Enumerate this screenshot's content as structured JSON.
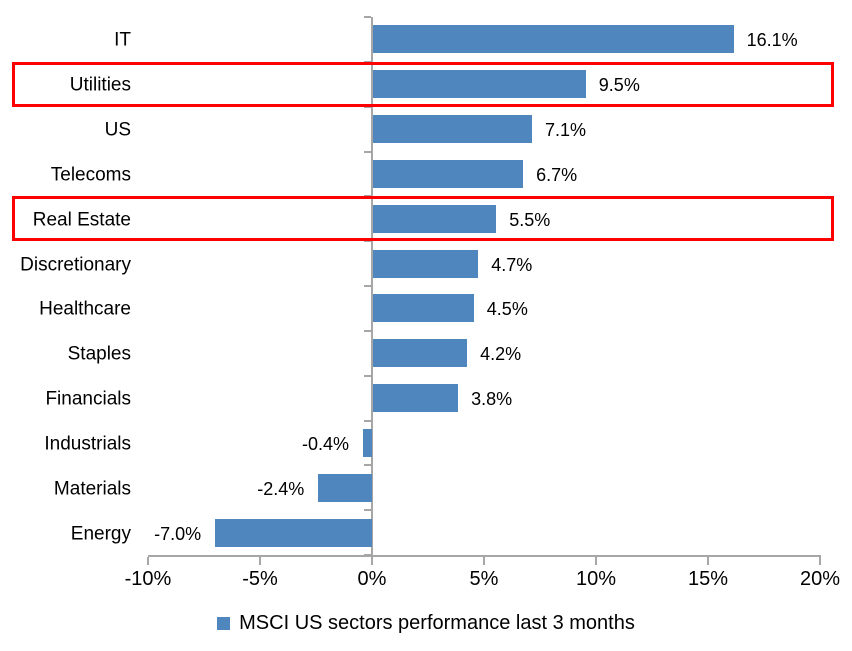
{
  "chart_data": {
    "type": "bar",
    "orientation": "horizontal",
    "categories": [
      "IT",
      "Utilities",
      "US",
      "Telecoms",
      "Real Estate",
      "Discretionary",
      "Healthcare",
      "Staples",
      "Financials",
      "Industrials",
      "Materials",
      "Energy"
    ],
    "values": [
      16.1,
      9.5,
      7.1,
      6.7,
      5.5,
      4.7,
      4.5,
      4.2,
      3.8,
      -0.4,
      -2.4,
      -7.0
    ],
    "data_labels": [
      "16.1%",
      "9.5%",
      "7.1%",
      "6.7%",
      "5.5%",
      "4.7%",
      "4.5%",
      "4.2%",
      "3.8%",
      "-0.4%",
      "-2.4%",
      "-7.0%"
    ],
    "x_tick_values": [
      -10,
      -5,
      0,
      5,
      10,
      15,
      20
    ],
    "x_tick_labels": [
      "-10%",
      "-5%",
      "0%",
      "5%",
      "10%",
      "15%",
      "20%"
    ],
    "xlim": [
      -10,
      20
    ],
    "grid": false,
    "highlighted_categories": [
      "Utilities",
      "Real Estate"
    ],
    "bar_color": "#4e86bd",
    "highlight_color": "#ff0000",
    "axis_color": "#a6a6a6",
    "legend": {
      "position": "bottom",
      "swatch_color": "#4e86bd",
      "label": "MSCI US sectors performance last 3 months"
    }
  }
}
